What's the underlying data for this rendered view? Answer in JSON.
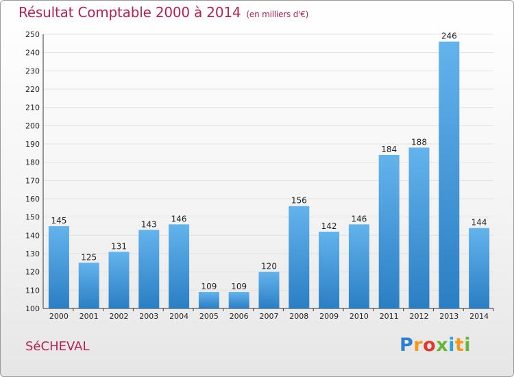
{
  "title": {
    "main": "Résultat Comptable 2000 à 2014",
    "unit": "(en milliers d'€)"
  },
  "commune": "SéCHEVAL",
  "logo": {
    "text": "Proxiti",
    "letters": [
      "P",
      "r",
      "o",
      "x",
      "i",
      "t",
      "i"
    ]
  },
  "colors": {
    "bar_top": "#63b3ec",
    "bar_bottom": "#2a7ec3",
    "grid": "#e2e2e2",
    "title": "#b5224f"
  },
  "chart_data": {
    "type": "bar",
    "categories": [
      "2000",
      "2001",
      "2002",
      "2003",
      "2004",
      "2005",
      "2006",
      "2007",
      "2008",
      "2009",
      "2010",
      "2011",
      "2012",
      "2013",
      "2014"
    ],
    "values": [
      145,
      125,
      131,
      143,
      146,
      109,
      109,
      120,
      156,
      142,
      146,
      184,
      188,
      246,
      144
    ],
    "ylim": [
      100,
      250
    ],
    "ytick_step": 10,
    "grid": true,
    "xlabel": "",
    "ylabel": ""
  }
}
